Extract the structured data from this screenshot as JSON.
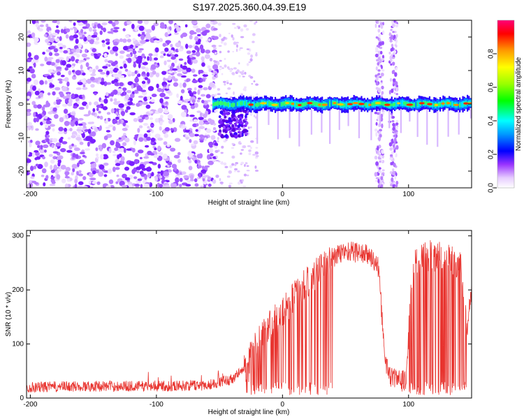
{
  "title": "S197.2025.360.04.39.E19",
  "chart_data": [
    {
      "type": "heatmap",
      "name": "spectrogram",
      "xlabel": "Height of straight line (km)",
      "ylabel": "Frequency (Hz)",
      "xlim": [
        -203,
        150
      ],
      "ylim": [
        -25,
        25
      ],
      "xticks": [
        -200,
        -100,
        0,
        100
      ],
      "yticks": [
        -20,
        -10,
        0,
        10,
        20
      ],
      "colorbar": {
        "label": "Normalized spectral amplitude",
        "range": [
          0,
          1
        ],
        "ticks": [
          0.0,
          0.2,
          0.4,
          0.6,
          0.8
        ],
        "tick_labels": [
          "0.0",
          "0.2",
          "0.4",
          "0.6",
          "0.8"
        ]
      },
      "features": {
        "noise_region_km": [
          -203,
          -55
        ],
        "signal_band_hz": [
          -2,
          2
        ],
        "signal_region_km": [
          -55,
          150
        ],
        "vertical_noise_bands_km": [
          77,
          88
        ]
      }
    },
    {
      "type": "line",
      "name": "snr",
      "xlabel": "Height of straight line (km)",
      "ylabel": "SNR (10 * v/v)",
      "xlim": [
        -203,
        150
      ],
      "ylim": [
        0,
        310
      ],
      "xticks": [
        -200,
        -100,
        0,
        100
      ],
      "yticks": [
        0,
        100,
        200,
        300
      ],
      "color": "#e8342f",
      "profile": [
        {
          "x": -203,
          "y": 20
        },
        {
          "x": -150,
          "y": 22
        },
        {
          "x": -100,
          "y": 22
        },
        {
          "x": -60,
          "y": 24
        },
        {
          "x": -40,
          "y": 35
        },
        {
          "x": -30,
          "y": 55
        },
        {
          "x": -25,
          "y": 80
        },
        {
          "x": -15,
          "y": 120
        },
        {
          "x": 0,
          "y": 160
        },
        {
          "x": 10,
          "y": 190
        },
        {
          "x": 20,
          "y": 215
        },
        {
          "x": 30,
          "y": 240
        },
        {
          "x": 40,
          "y": 260
        },
        {
          "x": 50,
          "y": 272
        },
        {
          "x": 60,
          "y": 270
        },
        {
          "x": 70,
          "y": 262
        },
        {
          "x": 76,
          "y": 240
        },
        {
          "x": 80,
          "y": 120
        },
        {
          "x": 82,
          "y": 60
        },
        {
          "x": 86,
          "y": 40
        },
        {
          "x": 90,
          "y": 35
        },
        {
          "x": 98,
          "y": 30
        },
        {
          "x": 102,
          "y": 200
        },
        {
          "x": 106,
          "y": 262
        },
        {
          "x": 120,
          "y": 262
        },
        {
          "x": 135,
          "y": 258
        },
        {
          "x": 142,
          "y": 240
        },
        {
          "x": 146,
          "y": 120
        },
        {
          "x": 150,
          "y": 200
        }
      ]
    }
  ]
}
